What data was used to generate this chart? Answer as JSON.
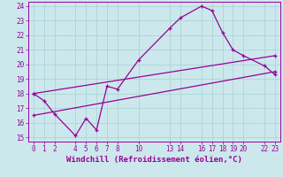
{
  "xlabel": "Windchill (Refroidissement éolien,°C)",
  "background_color": "#cce8ec",
  "grid_color": "#aad4d8",
  "line_color": "#990099",
  "xlim": [
    -0.5,
    23.5
  ],
  "ylim": [
    14.7,
    24.3
  ],
  "xticks": [
    0,
    1,
    2,
    4,
    5,
    6,
    7,
    8,
    10,
    13,
    14,
    16,
    17,
    18,
    19,
    20,
    22,
    23
  ],
  "yticks": [
    15,
    16,
    17,
    18,
    19,
    20,
    21,
    22,
    23,
    24
  ],
  "series1_x": [
    0,
    1,
    2,
    4,
    5,
    6,
    7,
    8,
    10,
    13,
    14,
    16,
    17,
    18,
    19,
    20,
    22,
    23
  ],
  "series1_y": [
    18.0,
    17.5,
    16.6,
    15.1,
    16.3,
    15.5,
    18.5,
    18.3,
    20.3,
    22.5,
    23.2,
    24.0,
    23.7,
    22.2,
    21.0,
    20.6,
    19.9,
    19.3
  ],
  "series2_x": [
    0,
    23
  ],
  "series2_y": [
    18.0,
    20.6
  ],
  "series3_x": [
    0,
    23
  ],
  "series3_y": [
    16.5,
    19.5
  ],
  "linewidth": 0.9,
  "marker_size": 3.5,
  "font_size": 6.5,
  "tick_label_size": 5.5
}
